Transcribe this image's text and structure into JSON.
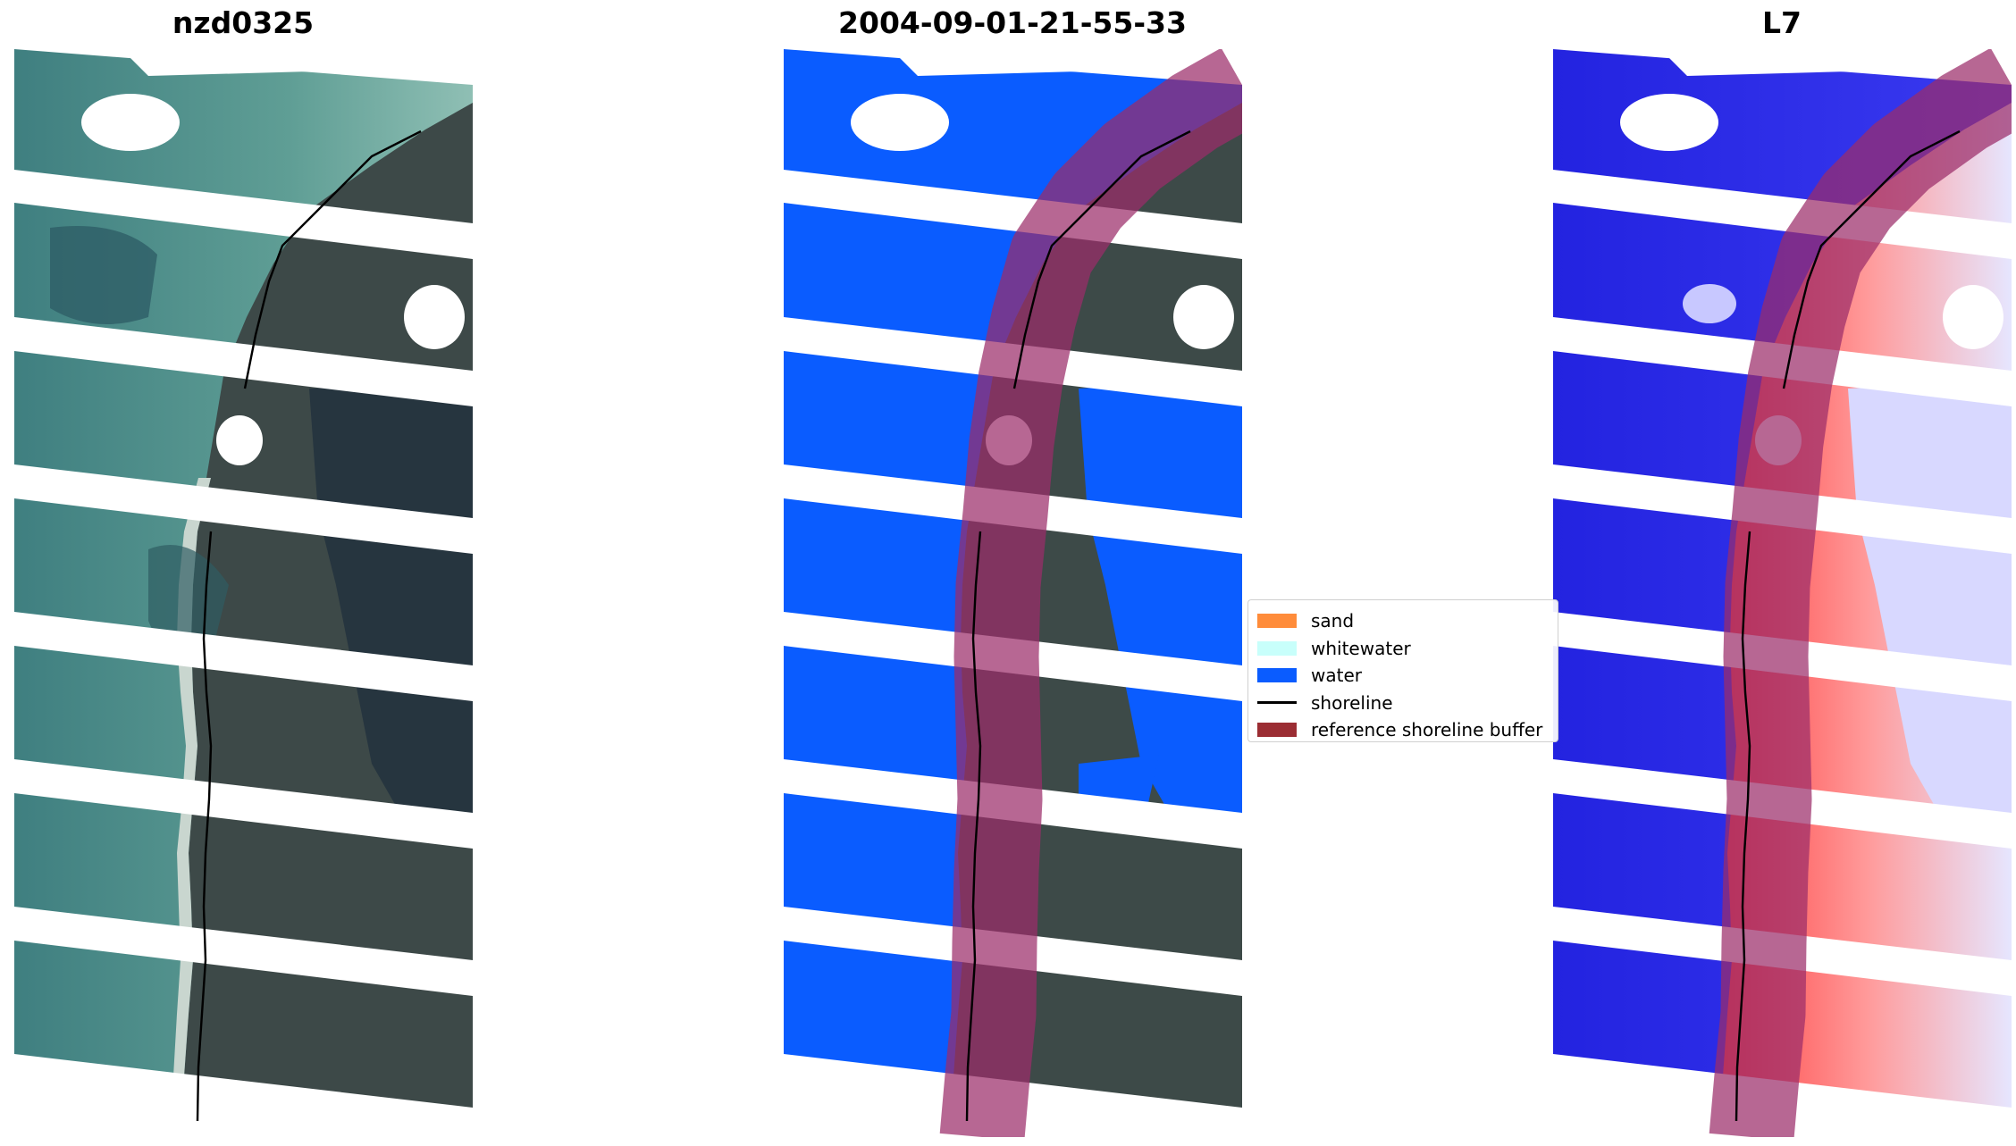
{
  "panels": [
    {
      "title": "nzd0325",
      "kind": "rgb"
    },
    {
      "title": "2004-09-01-21-55-33",
      "kind": "classified"
    },
    {
      "title": "L7",
      "kind": "index"
    }
  ],
  "legend": {
    "items": [
      {
        "label": "sand",
        "type": "patch",
        "color": "#ff8c3a"
      },
      {
        "label": "whitewater",
        "type": "patch",
        "color": "#c8fffb"
      },
      {
        "label": "water",
        "type": "patch",
        "color": "#0a5cff"
      },
      {
        "label": "shoreline",
        "type": "line",
        "color": "#000000"
      },
      {
        "label": "reference shoreline buffer",
        "type": "patch",
        "color": "#9b2d33"
      }
    ]
  },
  "colors": {
    "sea_rgb": "#4e8f8c",
    "land_rgb": "#3e4a48",
    "water_class": "#0a5cff",
    "buffer": "#9b2d6a",
    "index_water": "#2d2de6",
    "index_land": "#ff2a2a",
    "gap": "#ffffff"
  }
}
